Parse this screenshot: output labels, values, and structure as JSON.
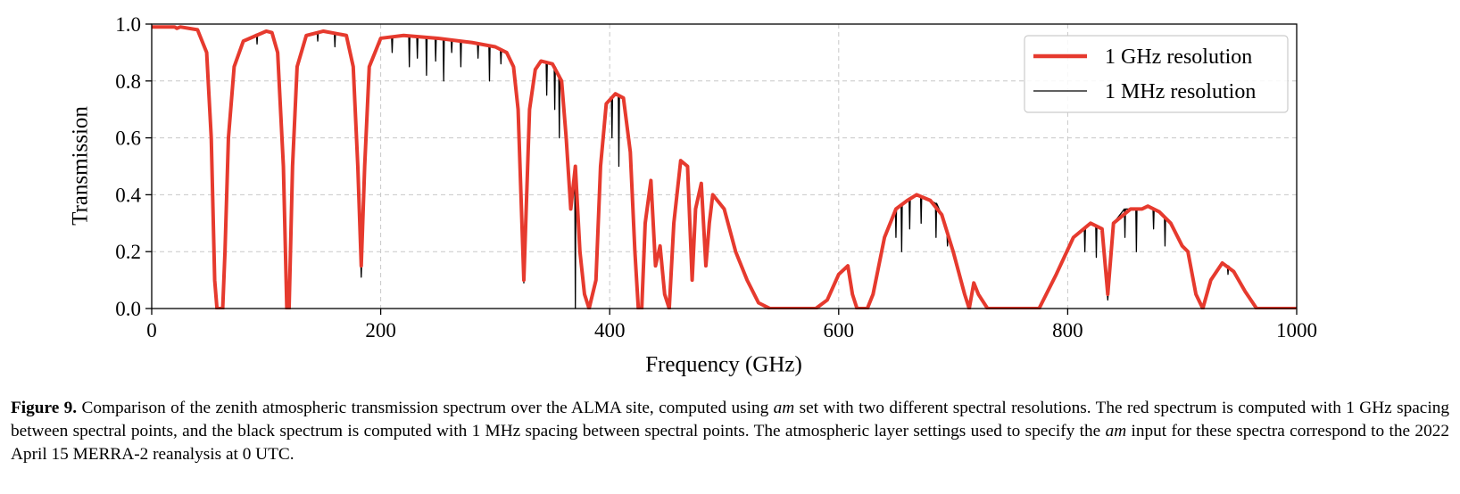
{
  "chart_data": {
    "type": "line",
    "xlabel": "Frequency (GHz)",
    "ylabel": "Transmission",
    "xlim": [
      0,
      1000
    ],
    "xticks": [
      0,
      200,
      400,
      600,
      800,
      1000
    ],
    "ylim": [
      0,
      1
    ],
    "yticks": [
      {
        "value": 0,
        "label": "0.0"
      },
      {
        "value": 0.2,
        "label": "0.2"
      },
      {
        "value": 0.4,
        "label": "0.4"
      },
      {
        "value": 0.6,
        "label": "0.6"
      },
      {
        "value": 0.8,
        "label": "0.8"
      },
      {
        "value": 1,
        "label": "1.0"
      }
    ],
    "grid": true,
    "legend": "upper right",
    "series": [
      {
        "name": "1 GHz resolution",
        "color": "#e63a2e",
        "x": [
          0,
          20,
          22,
          25,
          40,
          48,
          52,
          55,
          57,
          62,
          64,
          67,
          72,
          80,
          100,
          105,
          110,
          115,
          118,
          120,
          123,
          127,
          135,
          150,
          170,
          176,
          180,
          183,
          186,
          190,
          200,
          220,
          250,
          280,
          300,
          310,
          316,
          320,
          325,
          330,
          335,
          340,
          350,
          358,
          362,
          366,
          370,
          374,
          378,
          382,
          388,
          392,
          397,
          405,
          412,
          418,
          422,
          425,
          428,
          431,
          436,
          440,
          444,
          448,
          452,
          456,
          462,
          468,
          472,
          475,
          480,
          484,
          487,
          490,
          500,
          510,
          520,
          530,
          540,
          580,
          590,
          600,
          608,
          612,
          616,
          625,
          630,
          640,
          650,
          660,
          668,
          680,
          690,
          700,
          710,
          714,
          718,
          722,
          730,
          775,
          790,
          805,
          820,
          830,
          835,
          840,
          855,
          865,
          870,
          880,
          890,
          900,
          905,
          912,
          918,
          925,
          935,
          945,
          955,
          965,
          1000
        ],
        "values": [
          0.99,
          0.99,
          0.985,
          0.99,
          0.98,
          0.9,
          0.6,
          0.1,
          0,
          0,
          0.2,
          0.6,
          0.85,
          0.94,
          0.975,
          0.97,
          0.9,
          0.5,
          0,
          0,
          0.5,
          0.85,
          0.96,
          0.975,
          0.96,
          0.85,
          0.5,
          0.15,
          0.5,
          0.85,
          0.95,
          0.96,
          0.95,
          0.935,
          0.92,
          0.9,
          0.85,
          0.7,
          0.1,
          0.7,
          0.84,
          0.87,
          0.86,
          0.8,
          0.6,
          0.35,
          0.5,
          0.2,
          0.05,
          0,
          0.1,
          0.5,
          0.72,
          0.755,
          0.74,
          0.55,
          0.2,
          0,
          0,
          0.3,
          0.45,
          0.15,
          0.22,
          0.05,
          0,
          0.3,
          0.52,
          0.5,
          0.1,
          0.35,
          0.44,
          0.15,
          0.3,
          0.4,
          0.35,
          0.2,
          0.1,
          0.02,
          0,
          0,
          0.03,
          0.12,
          0.15,
          0.05,
          0,
          0,
          0.05,
          0.25,
          0.35,
          0.38,
          0.4,
          0.38,
          0.33,
          0.2,
          0.05,
          0,
          0.09,
          0.05,
          0,
          0,
          0.12,
          0.25,
          0.3,
          0.28,
          0.05,
          0.3,
          0.35,
          0.35,
          0.36,
          0.34,
          0.3,
          0.22,
          0.2,
          0.05,
          0,
          0.1,
          0.16,
          0.13,
          0.06,
          0,
          0
        ]
      },
      {
        "name": "1 MHz resolution",
        "color": "#000000",
        "x": [
          0,
          20,
          22,
          25,
          40,
          48,
          52,
          55,
          57,
          62,
          64,
          67,
          72,
          80,
          91.5,
          92,
          92.5,
          100,
          105,
          110,
          115,
          118,
          120,
          123,
          127,
          135,
          144.5,
          145,
          145.5,
          150,
          159.5,
          160,
          160.5,
          170,
          176,
          180,
          183,
          186,
          190,
          200,
          209.5,
          210,
          210.5,
          220,
          224.5,
          225,
          225.5,
          231.5,
          232,
          232.5,
          239.5,
          240,
          240.5,
          247.5,
          248,
          248.5,
          250,
          254.5,
          255,
          255.5,
          261.5,
          262,
          262.5,
          269.5,
          270,
          270.5,
          280,
          284.5,
          285,
          285.5,
          294.5,
          295,
          295.5,
          300,
          304.5,
          305,
          305.5,
          310,
          316,
          320,
          325,
          330,
          335,
          340,
          344.5,
          345,
          345.5,
          350,
          351.5,
          352,
          352.5,
          355.5,
          356,
          356.5,
          358,
          362,
          366,
          369.5,
          370,
          370.5,
          374,
          378,
          382,
          388,
          392,
          397,
          401.5,
          402,
          402.5,
          405,
          407.5,
          408,
          408.5,
          412,
          418,
          422,
          425,
          428,
          431,
          436,
          440,
          444,
          448,
          452,
          456,
          462,
          468,
          472,
          475,
          480,
          484,
          487,
          490,
          500,
          510,
          520,
          530,
          540,
          580,
          590,
          600,
          608,
          612,
          616,
          625,
          630,
          640,
          649.5,
          650,
          650.5,
          654.5,
          655,
          655.5,
          660,
          661.5,
          662,
          662.5,
          668,
          671.5,
          672,
          672.5,
          680,
          684.5,
          685,
          685.5,
          690,
          694.5,
          695,
          695.5,
          700,
          710,
          714,
          718,
          722,
          730,
          775,
          790,
          805,
          814.5,
          815,
          815.5,
          820,
          824.5,
          825,
          825.5,
          830,
          835,
          840,
          849.5,
          850,
          850.5,
          855,
          859.5,
          860,
          860.5,
          865,
          870,
          874.5,
          875,
          875.5,
          880,
          884.5,
          885,
          885.5,
          890,
          900,
          905,
          912,
          918,
          925,
          935,
          939.5,
          940,
          940.5,
          945,
          955,
          965,
          1000
        ],
        "values": [
          0.99,
          0.99,
          0.985,
          0.99,
          0.98,
          0.9,
          0.6,
          0.1,
          0,
          0,
          0.2,
          0.6,
          0.85,
          0.94,
          0.965,
          0.93,
          0.965,
          0.975,
          0.97,
          0.9,
          0.5,
          0,
          0,
          0.5,
          0.85,
          0.96,
          0.97,
          0.94,
          0.97,
          0.975,
          0.968,
          0.92,
          0.968,
          0.96,
          0.85,
          0.5,
          0.11,
          0.5,
          0.85,
          0.95,
          0.955,
          0.9,
          0.955,
          0.96,
          0.958,
          0.85,
          0.958,
          0.956,
          0.88,
          0.956,
          0.953,
          0.82,
          0.953,
          0.951,
          0.87,
          0.951,
          0.95,
          0.948,
          0.8,
          0.948,
          0.946,
          0.9,
          0.946,
          0.943,
          0.85,
          0.943,
          0.935,
          0.933,
          0.88,
          0.933,
          0.925,
          0.8,
          0.925,
          0.92,
          0.91,
          0.86,
          0.91,
          0.9,
          0.85,
          0.7,
          0.09,
          0.7,
          0.84,
          0.87,
          0.865,
          0.75,
          0.865,
          0.86,
          0.85,
          0.7,
          0.85,
          0.82,
          0.6,
          0.82,
          0.8,
          0.6,
          0.35,
          0.45,
          0,
          0.47,
          0.2,
          0.05,
          0,
          0.1,
          0.5,
          0.72,
          0.745,
          0.6,
          0.745,
          0.755,
          0.75,
          0.5,
          0.75,
          0.74,
          0.55,
          0.2,
          0,
          0,
          0.3,
          0.45,
          0.15,
          0.22,
          0.05,
          0,
          0.3,
          0.52,
          0.5,
          0.1,
          0.35,
          0.44,
          0.15,
          0.3,
          0.4,
          0.35,
          0.2,
          0.1,
          0.02,
          0,
          0,
          0.03,
          0.12,
          0.15,
          0.05,
          0,
          0,
          0.05,
          0.25,
          0.35,
          0.25,
          0.35,
          0.365,
          0.2,
          0.365,
          0.38,
          0.385,
          0.28,
          0.385,
          0.4,
          0.395,
          0.3,
          0.395,
          0.38,
          0.37,
          0.25,
          0.37,
          0.33,
          0.27,
          0.22,
          0.27,
          0.2,
          0.05,
          0,
          0.09,
          0.05,
          0,
          0,
          0.12,
          0.25,
          0.28,
          0.2,
          0.28,
          0.3,
          0.29,
          0.18,
          0.29,
          0.28,
          0.03,
          0.3,
          0.35,
          0.25,
          0.35,
          0.35,
          0.35,
          0.2,
          0.35,
          0.35,
          0.36,
          0.35,
          0.28,
          0.35,
          0.34,
          0.32,
          0.22,
          0.32,
          0.3,
          0.22,
          0.2,
          0.05,
          0,
          0.1,
          0.16,
          0.15,
          0.12,
          0.15,
          0.13,
          0.06,
          0,
          0
        ]
      }
    ]
  },
  "caption": {
    "label": "Figure 9.",
    "text_1": " Comparison of the zenith atmospheric transmission spectrum over the ALMA site, computed using ",
    "em_1": "am",
    "text_2": " set with two different spectral resolutions. The red spectrum is computed with 1 GHz spacing between spectral points, and the black spectrum is computed with 1 MHz spacing between spectral points. The atmospheric layer settings used to specify the ",
    "em_2": "am",
    "text_3": " input for these spectra correspond to the 2022 April 15 MERRA-2 reanalysis at 0 UTC."
  }
}
